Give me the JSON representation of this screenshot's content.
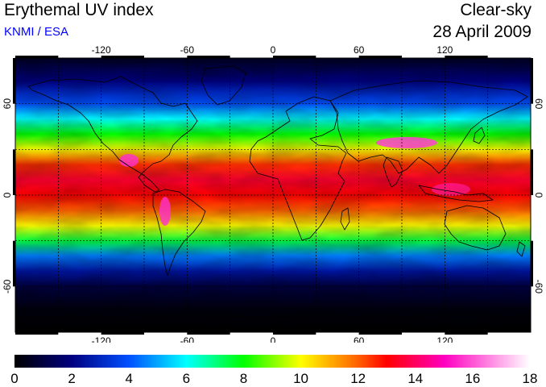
{
  "header": {
    "title": "Erythemal UV index",
    "subtitle": "KNMI / ESA",
    "condition": "Clear-sky",
    "date": "28 April 2009"
  },
  "colors": {
    "subtitle": "#0000ff",
    "text": "#000000"
  },
  "map": {
    "projection": "equirectangular",
    "lon_range": [
      -180,
      180
    ],
    "lat_range": [
      -90,
      90
    ],
    "lon_ticks": [
      -120,
      -60,
      0,
      60,
      120
    ],
    "lon_tick_labels": [
      "-120",
      "-60",
      "0",
      "60",
      "120"
    ],
    "lat_ticks": [
      60,
      0,
      -60
    ],
    "lat_tick_labels": [
      "60",
      "0",
      "-60"
    ],
    "gridlines": "dashed",
    "grid_lat_step": 30,
    "grid_lon_step": 30,
    "coastlines": true
  },
  "colorbar": {
    "min": 0,
    "max": 18,
    "ticks": [
      0,
      2,
      4,
      6,
      8,
      10,
      12,
      14,
      16,
      18
    ],
    "tick_labels": [
      "0",
      "2",
      "4",
      "6",
      "8",
      "10",
      "12",
      "14",
      "16",
      "18"
    ],
    "stops": [
      {
        "value": 0,
        "color": "#000000"
      },
      {
        "value": 2,
        "color": "#000080"
      },
      {
        "value": 4,
        "color": "#0050ff"
      },
      {
        "value": 6,
        "color": "#00ffff"
      },
      {
        "value": 8,
        "color": "#00ff00"
      },
      {
        "value": 10,
        "color": "#ffff00"
      },
      {
        "value": 12,
        "color": "#ff6000"
      },
      {
        "value": 13,
        "color": "#ff0000"
      },
      {
        "value": 15,
        "color": "#ff00c0"
      },
      {
        "value": 18,
        "color": "#ffffff"
      }
    ]
  },
  "chart_data": {
    "type": "heatmap",
    "title": "Erythemal UV index",
    "x_range": [
      -180,
      180
    ],
    "y_range": [
      -90,
      90
    ],
    "value_range": [
      0,
      18
    ],
    "zonal_profile": {
      "lat": [
        90,
        75,
        60,
        50,
        40,
        30,
        20,
        10,
        0,
        -10,
        -20,
        -30,
        -40,
        -50,
        -60,
        -75,
        -90
      ],
      "uv": [
        0.5,
        2,
        4,
        6,
        8,
        10,
        12.5,
        13.5,
        13,
        12,
        10,
        7.5,
        4.5,
        2.5,
        1,
        0.2,
        0
      ]
    }
  }
}
